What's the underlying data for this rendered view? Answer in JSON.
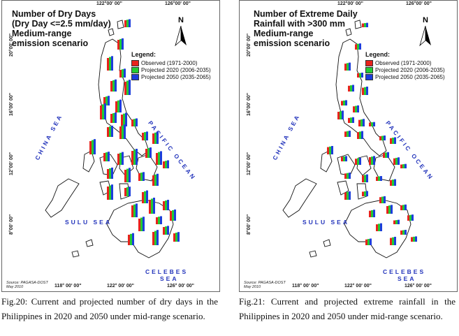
{
  "legend": {
    "title": "Legend:",
    "items": [
      {
        "label": "Observed (1971-2000)",
        "color": "#e8221c"
      },
      {
        "label": "Projected 2020 (2006-2035)",
        "color": "#22cc33"
      },
      {
        "label": "Projected 2050 (2035-2065)",
        "color": "#1c3ddc"
      }
    ]
  },
  "north_label": "N",
  "seas": {
    "china_sea": "CHINA SEA",
    "pacific_ocean": "PACIFIC OCEAN",
    "sulu_sea": "SULU SEA",
    "celebes": "CELEBES",
    "celebes_sea": "SEA"
  },
  "coords": {
    "top_left": "122°00' 00\"",
    "top_right": "126°00' 00\"",
    "bottom_left": "118° 00' 00\"",
    "bottom_mid": "122° 00' 00\"",
    "bottom_right": "126° 00' 00\"",
    "lat_20": "20°00' 00\"",
    "lat_16": "16°00' 00\"",
    "lat_12": "12°00' 00\"",
    "lat_8": "8°00' 00\"",
    "source_line1": "Source: PAGASA-DOST",
    "source_line2": "May 2010"
  },
  "left_map": {
    "title_lines": [
      "Number of Dry Days",
      "(Dry Day <=2.5 mm/day)",
      "Medium-range",
      "emission scenario"
    ],
    "bar_scale": 1.0
  },
  "right_map": {
    "title_lines": [
      "Number of Extreme Daily",
      "Rainfall with >300 mm",
      "Medium-range",
      "emission scenario"
    ],
    "bar_scale": 0.55
  },
  "captions": {
    "left": "Fig.20: Current and projected number of dry days in the Philippines in 2020 and 2050 under mid-range scenario.",
    "right": "Fig.21: Current and projected extreme rainfall in the Philippines in 2020 and 2050 under mid-range scenario."
  }
}
